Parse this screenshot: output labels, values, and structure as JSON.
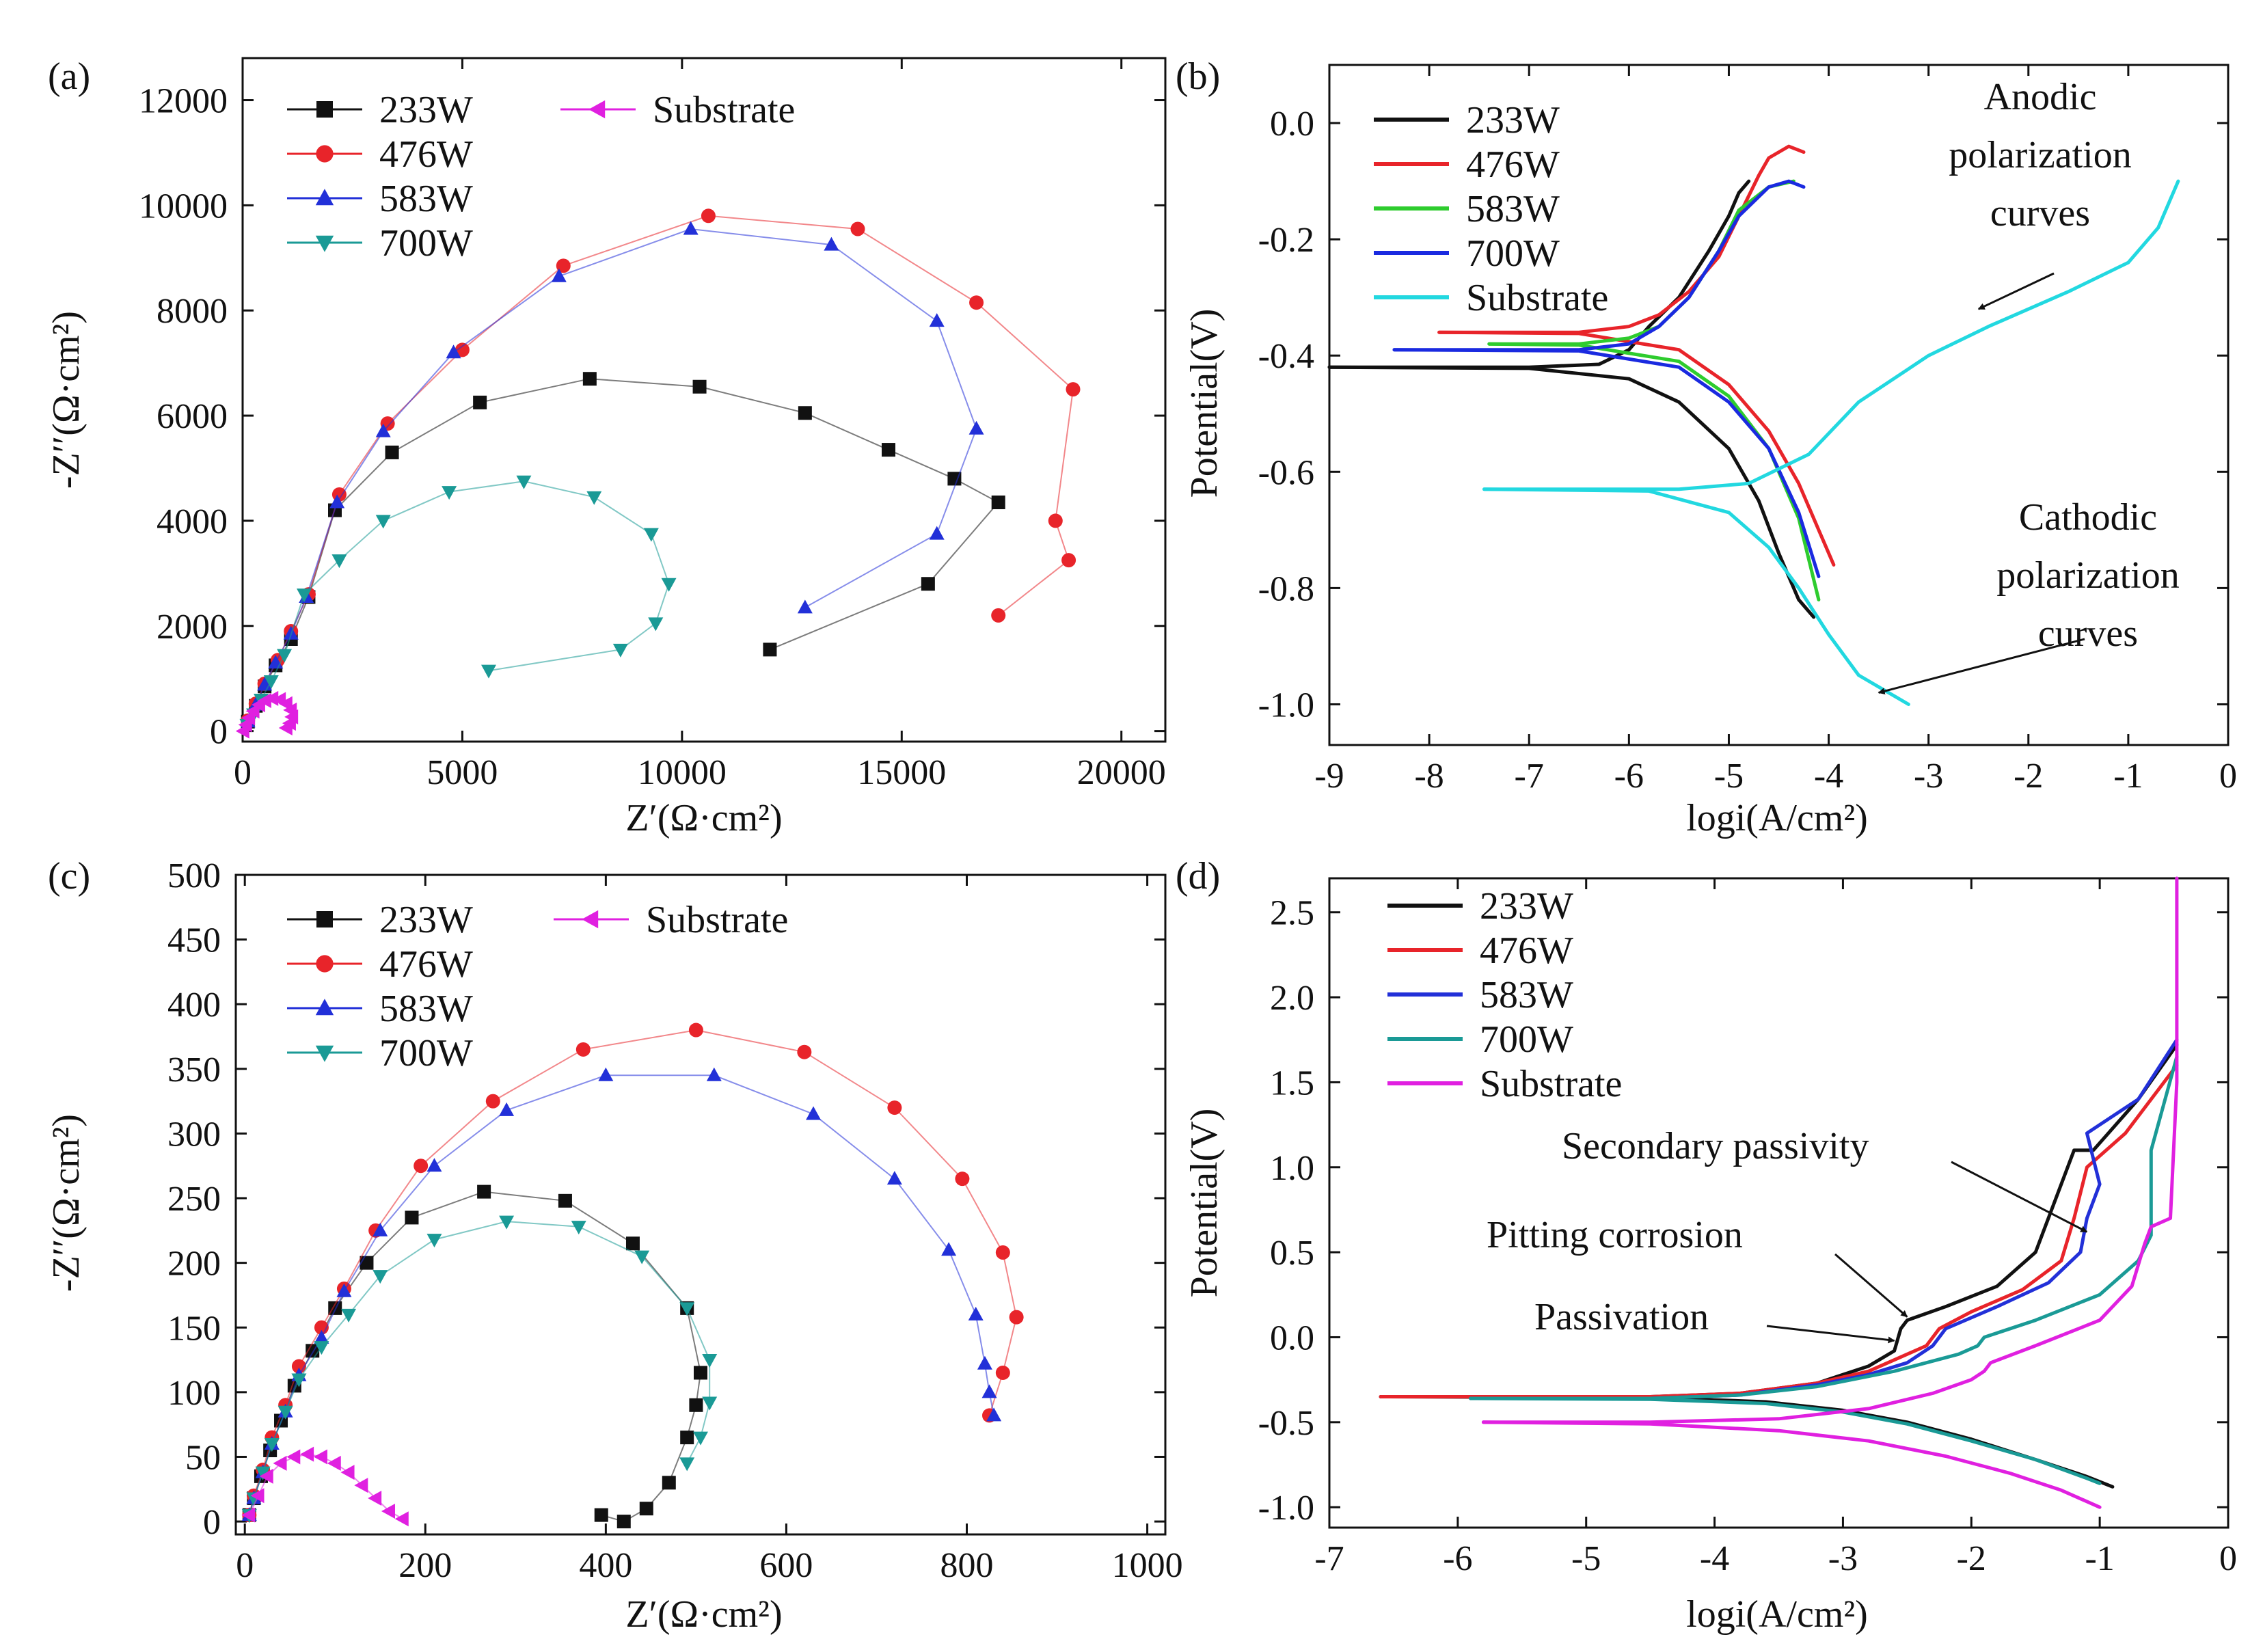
{
  "colors": {
    "233W": "#111111",
    "476W": "#e8242a",
    "583W": "#2230d8",
    "700W": "#1a9a96",
    "583W_b": "#2ecc2e",
    "700W_b": "#1a2ae0",
    "substrate": "#e020e0",
    "substrate_b": "#22d8e0"
  },
  "chart_data": [
    {
      "id": "a",
      "panel_label": "(a)",
      "type": "scatter",
      "xlabel": "Z′(Ω·cm²)",
      "ylabel": "-Z′′(Ω·cm²)",
      "xlim": [
        0,
        21000
      ],
      "ylim": [
        -200,
        12800
      ],
      "xticks": [
        0,
        5000,
        10000,
        15000,
        20000
      ],
      "yticks": [
        0,
        2000,
        4000,
        6000,
        8000,
        10000,
        12000
      ],
      "legend_position": "top-left",
      "series": [
        {
          "name": "233W",
          "marker": "square",
          "x": [
            120,
            300,
            500,
            750,
            1100,
            1500,
            2100,
            3400,
            5400,
            7900,
            10400,
            12800,
            14700,
            16200,
            17200,
            15600,
            12000
          ],
          "y": [
            180,
            480,
            850,
            1250,
            1750,
            2550,
            4200,
            5300,
            6250,
            6700,
            6550,
            6050,
            5350,
            4800,
            4350,
            2800,
            1550
          ]
        },
        {
          "name": "476W",
          "marker": "circle",
          "x": [
            120,
            300,
            500,
            800,
            1100,
            1500,
            2200,
            3300,
            5000,
            7300,
            10600,
            14000,
            16700,
            18900,
            18500,
            18800,
            17200
          ],
          "y": [
            200,
            520,
            900,
            1350,
            1900,
            2600,
            4500,
            5850,
            7250,
            8850,
            9800,
            9550,
            8150,
            6500,
            4000,
            3250,
            2200
          ]
        },
        {
          "name": "583W",
          "marker": "triangle-up",
          "x": [
            120,
            300,
            500,
            750,
            1100,
            1450,
            2150,
            3200,
            4800,
            7200,
            10200,
            13400,
            15800,
            16700,
            15800,
            12800
          ],
          "y": [
            180,
            500,
            880,
            1300,
            1850,
            2550,
            4350,
            5700,
            7200,
            8650,
            9550,
            9250,
            7800,
            5750,
            3750,
            2350
          ]
        },
        {
          "name": "700W",
          "marker": "triangle-down",
          "x": [
            100,
            250,
            420,
            650,
            950,
            1400,
            2200,
            3200,
            4700,
            6400,
            8000,
            9300,
            9700,
            9400,
            8600,
            5600
          ],
          "y": [
            120,
            320,
            600,
            950,
            1450,
            2600,
            3250,
            4000,
            4550,
            4750,
            4450,
            3750,
            2800,
            2050,
            1550,
            1150
          ]
        },
        {
          "name": "Substrate",
          "marker": "triangle-left",
          "x": [
            20,
            80,
            150,
            250,
            380,
            520,
            680,
            850,
            1000,
            1100,
            1130,
            1080,
            1000
          ],
          "y": [
            0,
            120,
            250,
            380,
            500,
            580,
            620,
            600,
            520,
            400,
            270,
            150,
            60
          ]
        }
      ]
    },
    {
      "id": "b",
      "panel_label": "(b)",
      "type": "line",
      "xlabel": "logi(A/cm²)",
      "ylabel": "Potential(V)",
      "xlim": [
        -9.0,
        0.0
      ],
      "ylim": [
        -1.07,
        0.1
      ],
      "xticks": [
        -9,
        -8,
        -7,
        -6,
        -5,
        -4,
        -3,
        -2,
        -1,
        0
      ],
      "yticks": [
        0.0,
        -0.2,
        -0.4,
        -0.6,
        -0.8,
        -1.0
      ],
      "legend_position": "top-left",
      "series": [
        {
          "name": "233W",
          "x": [
            -9.0,
            -7.0,
            -6.3,
            -6.0,
            -5.8,
            -5.5,
            -5.2,
            -5.0,
            -4.9,
            -4.8
          ],
          "y": [
            -0.42,
            -0.42,
            -0.415,
            -0.39,
            -0.35,
            -0.3,
            -0.22,
            -0.16,
            -0.12,
            -0.1
          ]
        },
        {
          "name": "233W_cathodic",
          "x": [
            -9.0,
            -7.0,
            -6.0,
            -5.5,
            -5.0,
            -4.7,
            -4.5,
            -4.3,
            -4.15
          ],
          "y": [
            -0.42,
            -0.422,
            -0.44,
            -0.48,
            -0.56,
            -0.65,
            -0.74,
            -0.82,
            -0.85
          ]
        },
        {
          "name": "476W",
          "x": [
            -7.9,
            -6.5,
            -6.0,
            -5.7,
            -5.4,
            -5.1,
            -4.9,
            -4.7,
            -4.6,
            -4.4,
            -4.25
          ],
          "y": [
            -0.36,
            -0.36,
            -0.35,
            -0.33,
            -0.29,
            -0.23,
            -0.16,
            -0.09,
            -0.06,
            -0.04,
            -0.05
          ]
        },
        {
          "name": "476W_cathodic",
          "x": [
            -7.9,
            -6.5,
            -5.5,
            -5.0,
            -4.6,
            -4.3,
            -4.1,
            -3.95
          ],
          "y": [
            -0.36,
            -0.362,
            -0.39,
            -0.45,
            -0.53,
            -0.62,
            -0.7,
            -0.76
          ]
        },
        {
          "name": "583W",
          "x": [
            -7.4,
            -6.5,
            -6.0,
            -5.7,
            -5.4,
            -5.1,
            -4.9,
            -4.6,
            -4.35
          ],
          "y": [
            -0.38,
            -0.38,
            -0.37,
            -0.35,
            -0.3,
            -0.22,
            -0.15,
            -0.11,
            -0.1
          ]
        },
        {
          "name": "583W_cathodic",
          "x": [
            -7.4,
            -6.5,
            -5.5,
            -5.0,
            -4.6,
            -4.3,
            -4.1
          ],
          "y": [
            -0.38,
            -0.382,
            -0.41,
            -0.47,
            -0.56,
            -0.68,
            -0.82
          ]
        },
        {
          "name": "700W",
          "x": [
            -8.35,
            -6.5,
            -6.0,
            -5.7,
            -5.4,
            -5.1,
            -4.9,
            -4.6,
            -4.4,
            -4.25
          ],
          "y": [
            -0.39,
            -0.39,
            -0.38,
            -0.35,
            -0.3,
            -0.22,
            -0.16,
            -0.11,
            -0.1,
            -0.11
          ]
        },
        {
          "name": "700W_cathodic",
          "x": [
            -8.35,
            -6.5,
            -5.5,
            -5.0,
            -4.6,
            -4.3,
            -4.1
          ],
          "y": [
            -0.39,
            -0.392,
            -0.42,
            -0.48,
            -0.56,
            -0.67,
            -0.78
          ]
        },
        {
          "name": "Substrate",
          "x": [
            -7.45,
            -5.5,
            -4.8,
            -4.2,
            -3.7,
            -3.0,
            -2.4,
            -1.6,
            -1.0,
            -0.7,
            -0.5
          ],
          "y": [
            -0.63,
            -0.63,
            -0.62,
            -0.57,
            -0.48,
            -0.4,
            -0.35,
            -0.29,
            -0.24,
            -0.18,
            -0.1
          ]
        },
        {
          "name": "Substrate_cathodic",
          "x": [
            -7.45,
            -5.8,
            -5.0,
            -4.6,
            -4.3,
            -4.0,
            -3.7,
            -3.2
          ],
          "y": [
            -0.63,
            -0.633,
            -0.67,
            -0.73,
            -0.8,
            -0.88,
            -0.95,
            -1.0
          ]
        }
      ],
      "annotations": [
        {
          "lines": [
            "Anodic",
            "polarization",
            "curves"
          ],
          "arrow_to": [
            -2.5,
            -0.32
          ]
        },
        {
          "lines": [
            "Cathodic",
            "polarization",
            "curves"
          ],
          "arrow_to": [
            -3.5,
            -0.98
          ]
        }
      ]
    },
    {
      "id": "c",
      "panel_label": "(c)",
      "type": "scatter",
      "xlabel": "Z′(Ω·cm²)",
      "ylabel": "-Z′′(Ω·cm²)",
      "xlim": [
        -10,
        1020
      ],
      "ylim": [
        -10,
        500
      ],
      "xticks": [
        0,
        200,
        400,
        600,
        800,
        1000
      ],
      "yticks": [
        0,
        50,
        100,
        150,
        200,
        250,
        300,
        350,
        400,
        450,
        500
      ],
      "legend_position": "top-left",
      "series": [
        {
          "name": "233W",
          "marker": "square",
          "x": [
            5,
            10,
            18,
            28,
            40,
            55,
            75,
            100,
            135,
            185,
            265,
            355,
            430,
            490,
            505,
            500,
            490,
            470,
            445,
            420,
            395
          ],
          "y": [
            5,
            18,
            35,
            55,
            78,
            105,
            132,
            165,
            200,
            235,
            255,
            248,
            215,
            165,
            115,
            90,
            65,
            30,
            10,
            0,
            5
          ]
        },
        {
          "name": "476W",
          "marker": "circle",
          "x": [
            5,
            10,
            20,
            30,
            45,
            60,
            85,
            110,
            145,
            195,
            275,
            375,
            500,
            620,
            720,
            795,
            840,
            855,
            840,
            825
          ],
          "y": [
            5,
            20,
            40,
            65,
            90,
            120,
            150,
            180,
            225,
            275,
            325,
            365,
            380,
            363,
            320,
            265,
            208,
            158,
            115,
            82
          ]
        },
        {
          "name": "583W",
          "marker": "triangle-up",
          "x": [
            5,
            10,
            20,
            30,
            45,
            60,
            85,
            110,
            150,
            210,
            290,
            400,
            520,
            630,
            720,
            780,
            810,
            820,
            825,
            830
          ],
          "y": [
            5,
            18,
            38,
            60,
            85,
            113,
            142,
            178,
            225,
            275,
            318,
            345,
            345,
            315,
            265,
            210,
            160,
            122,
            100,
            82
          ]
        },
        {
          "name": "700W",
          "marker": "triangle-down",
          "x": [
            5,
            10,
            20,
            30,
            45,
            60,
            85,
            115,
            150,
            210,
            290,
            370,
            440,
            490,
            515,
            515,
            505,
            490
          ],
          "y": [
            5,
            18,
            38,
            60,
            85,
            110,
            135,
            160,
            190,
            218,
            232,
            228,
            205,
            165,
            125,
            92,
            65,
            45
          ]
        },
        {
          "name": "Substrate",
          "marker": "triangle-left",
          "x": [
            5,
            15,
            25,
            40,
            55,
            70,
            85,
            100,
            115,
            130,
            145,
            160,
            175
          ],
          "y": [
            5,
            20,
            35,
            45,
            50,
            52,
            50,
            45,
            38,
            28,
            18,
            8,
            2
          ]
        }
      ]
    },
    {
      "id": "d",
      "panel_label": "(d)",
      "type": "line",
      "xlabel": "logi(A/cm²)",
      "ylabel": "Potential(V)",
      "xlim": [
        -7.0,
        0.0
      ],
      "ylim": [
        -1.12,
        2.7
      ],
      "xticks": [
        -7,
        -6,
        -5,
        -4,
        -3,
        -2,
        -1,
        0
      ],
      "yticks": [
        -1.0,
        -0.5,
        0.0,
        0.5,
        1.0,
        1.5,
        2.0,
        2.5
      ],
      "legend_position": "top-left",
      "series": [
        {
          "name": "233W",
          "x": [
            -6.6,
            -4.5,
            -3.8,
            -3.2,
            -2.8,
            -2.6,
            -2.55,
            -2.5,
            -2.2,
            -1.8,
            -1.5,
            -1.35,
            -1.2,
            -1.05,
            -0.7,
            -0.4
          ],
          "y": [
            -0.35,
            -0.35,
            -0.33,
            -0.27,
            -0.17,
            -0.08,
            0.05,
            0.1,
            0.18,
            0.3,
            0.5,
            0.8,
            1.1,
            1.1,
            1.4,
            1.72
          ]
        },
        {
          "name": "233W_cathodic",
          "x": [
            -6.6,
            -4.5,
            -3.6,
            -3.0,
            -2.5,
            -2.0,
            -1.5,
            -1.1,
            -0.9
          ],
          "y": [
            -0.35,
            -0.355,
            -0.38,
            -0.43,
            -0.5,
            -0.6,
            -0.72,
            -0.82,
            -0.88
          ]
        },
        {
          "name": "476W",
          "x": [
            -6.6,
            -4.5,
            -3.8,
            -3.2,
            -2.8,
            -2.5,
            -2.35,
            -2.25,
            -2.0,
            -1.6,
            -1.3,
            -1.2,
            -1.1,
            -0.8,
            -0.4
          ],
          "y": [
            -0.35,
            -0.35,
            -0.33,
            -0.27,
            -0.2,
            -0.1,
            -0.05,
            0.05,
            0.15,
            0.28,
            0.45,
            0.7,
            1.0,
            1.2,
            1.6
          ]
        },
        {
          "name": "583W",
          "x": [
            -5.9,
            -4.5,
            -3.8,
            -3.2,
            -2.8,
            -2.5,
            -2.3,
            -2.2,
            -1.8,
            -1.4,
            -1.15,
            -1.1,
            -1.0,
            -1.1,
            -0.7,
            -0.4
          ],
          "y": [
            -0.36,
            -0.36,
            -0.34,
            -0.28,
            -0.22,
            -0.15,
            -0.05,
            0.05,
            0.18,
            0.32,
            0.5,
            0.7,
            0.9,
            1.2,
            1.4,
            1.75
          ]
        },
        {
          "name": "700W",
          "x": [
            -5.9,
            -4.5,
            -3.8,
            -3.2,
            -2.6,
            -2.1,
            -1.95,
            -1.9,
            -1.5,
            -1.0,
            -0.7,
            -0.6,
            -0.6,
            -0.4
          ],
          "y": [
            -0.36,
            -0.36,
            -0.34,
            -0.29,
            -0.2,
            -0.1,
            -0.05,
            0.0,
            0.1,
            0.25,
            0.45,
            0.6,
            1.1,
            1.65
          ]
        },
        {
          "name": "700W_cathodic",
          "x": [
            -5.9,
            -4.5,
            -3.6,
            -3.0,
            -2.5,
            -2.0,
            -1.5,
            -1.1,
            -1.0
          ],
          "y": [
            -0.36,
            -0.365,
            -0.39,
            -0.44,
            -0.51,
            -0.61,
            -0.72,
            -0.83,
            -0.86
          ]
        },
        {
          "name": "Substrate",
          "x": [
            -5.8,
            -4.5,
            -3.5,
            -2.8,
            -2.3,
            -2.0,
            -1.9,
            -1.85,
            -1.5,
            -1.0,
            -0.75,
            -0.65,
            -0.6,
            -0.45,
            -0.4,
            -0.4
          ],
          "y": [
            -0.5,
            -0.5,
            -0.48,
            -0.42,
            -0.33,
            -0.25,
            -0.2,
            -0.15,
            -0.05,
            0.1,
            0.3,
            0.55,
            0.65,
            0.7,
            1.5,
            2.7
          ]
        },
        {
          "name": "Substrate_cathodic",
          "x": [
            -5.8,
            -4.5,
            -3.5,
            -2.8,
            -2.2,
            -1.7,
            -1.3,
            -1.0
          ],
          "y": [
            -0.5,
            -0.51,
            -0.55,
            -0.61,
            -0.7,
            -0.8,
            -0.9,
            -1.0
          ]
        }
      ],
      "annotations": [
        {
          "lines": [
            "Secondary passivity"
          ],
          "arrow_to": [
            -1.1,
            0.62
          ]
        },
        {
          "lines": [
            "Pitting corrosion"
          ],
          "arrow_to": [
            -2.5,
            0.12
          ]
        },
        {
          "lines": [
            "Passivation"
          ],
          "arrow_to": [
            -2.6,
            -0.02
          ]
        }
      ]
    }
  ]
}
